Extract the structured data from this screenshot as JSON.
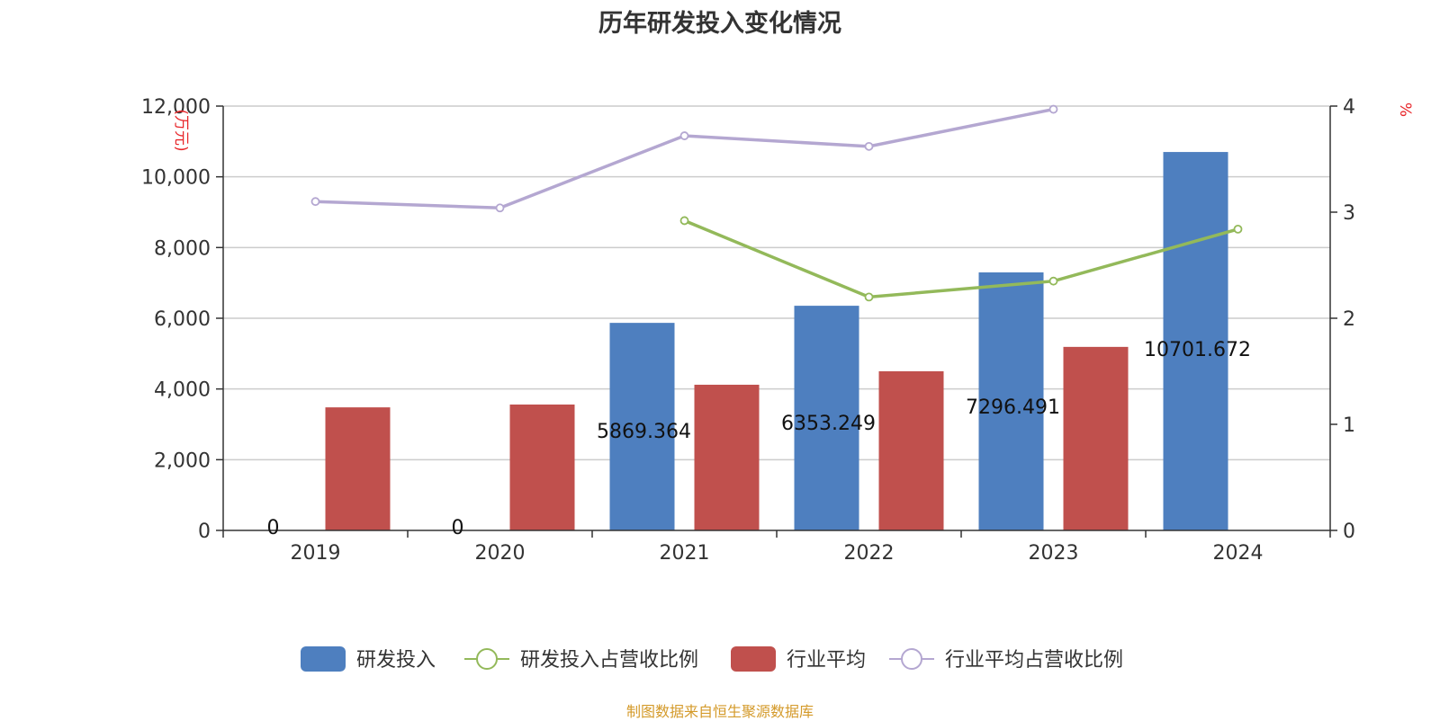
{
  "chart_data": {
    "type": "bar",
    "title": "历年研发投入变化情况",
    "categories": [
      "2019",
      "2020",
      "2021",
      "2022",
      "2023",
      "2024"
    ],
    "left_axis": {
      "unit_label": "(万元)",
      "ylim": [
        0,
        12000
      ],
      "ticks": [
        0,
        2000,
        4000,
        6000,
        8000,
        10000,
        12000
      ],
      "tick_labels": [
        "0",
        "2,000",
        "4,000",
        "6,000",
        "8,000",
        "10,000",
        "12,000"
      ]
    },
    "right_axis": {
      "unit_label": "%",
      "ylim": [
        0,
        4
      ],
      "ticks": [
        0,
        1,
        2,
        3,
        4
      ],
      "tick_labels": [
        "0",
        "1",
        "2",
        "3",
        "4"
      ]
    },
    "grid": true,
    "legend_position": "bottom",
    "series": [
      {
        "name": "研发投入",
        "type": "bar",
        "axis": "left",
        "color": "#4e7fbf",
        "values": [
          0,
          0,
          5869.364,
          6353.249,
          7296.491,
          10701.672
        ],
        "labels": [
          "0",
          "0",
          "5869.364",
          "6353.249",
          "7296.491",
          "10701.672"
        ]
      },
      {
        "name": "研发投入占营收比例",
        "type": "line",
        "axis": "right",
        "color": "#93b95a",
        "values": [
          null,
          null,
          2.92,
          2.2,
          2.35,
          2.84
        ]
      },
      {
        "name": "行业平均",
        "type": "bar",
        "axis": "left",
        "color": "#c0504d",
        "values": [
          3480,
          3560,
          4120,
          4500,
          5190,
          null
        ]
      },
      {
        "name": "行业平均占营收比例",
        "type": "line",
        "axis": "right",
        "color": "#b4a7d1",
        "values": [
          3.1,
          3.04,
          3.72,
          3.62,
          3.97,
          null
        ]
      }
    ],
    "source_note": "制图数据来自恒生聚源数据库",
    "source_color": "#d49a2a"
  }
}
